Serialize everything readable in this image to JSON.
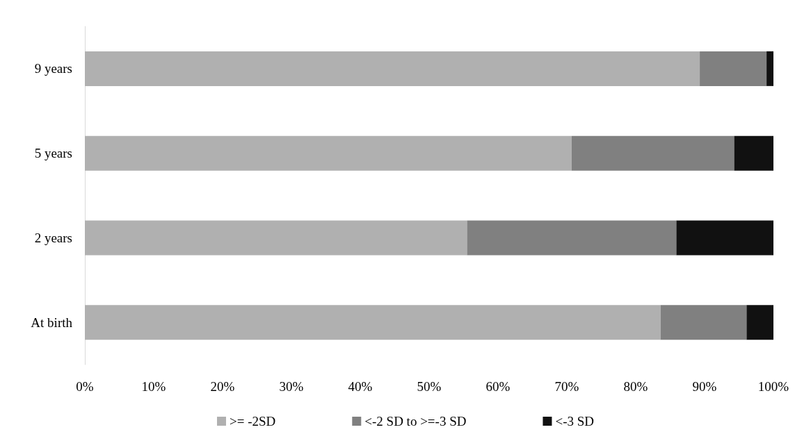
{
  "chart_data": {
    "type": "bar",
    "orientation": "horizontal",
    "stacked": true,
    "categories": [
      "9 years",
      "5 years",
      "2 years",
      "At birth"
    ],
    "series": [
      {
        "name": ">= -2SD",
        "color": "#b0b0b0",
        "values": [
          89.3,
          70.7,
          55.5,
          83.6
        ]
      },
      {
        "name": "<-2 SD to >=-3 SD",
        "color": "#808080",
        "values": [
          9.7,
          23.6,
          30.4,
          12.5
        ]
      },
      {
        "name": "<-3 SD",
        "color": "#111111",
        "values": [
          1.0,
          5.7,
          14.1,
          3.9
        ]
      }
    ],
    "xlim": [
      0,
      100
    ],
    "xticks": [
      {
        "value": 0,
        "label": "0%"
      },
      {
        "value": 10,
        "label": "10%"
      },
      {
        "value": 20,
        "label": "20%"
      },
      {
        "value": 30,
        "label": "30%"
      },
      {
        "value": 40,
        "label": "40%"
      },
      {
        "value": 50,
        "label": "50%"
      },
      {
        "value": 60,
        "label": "60%"
      },
      {
        "value": 70,
        "label": "70%"
      },
      {
        "value": 80,
        "label": "80%"
      },
      {
        "value": 90,
        "label": "90%"
      },
      {
        "value": 100,
        "label": "100%"
      }
    ],
    "grid": false,
    "legend": "bottom"
  }
}
